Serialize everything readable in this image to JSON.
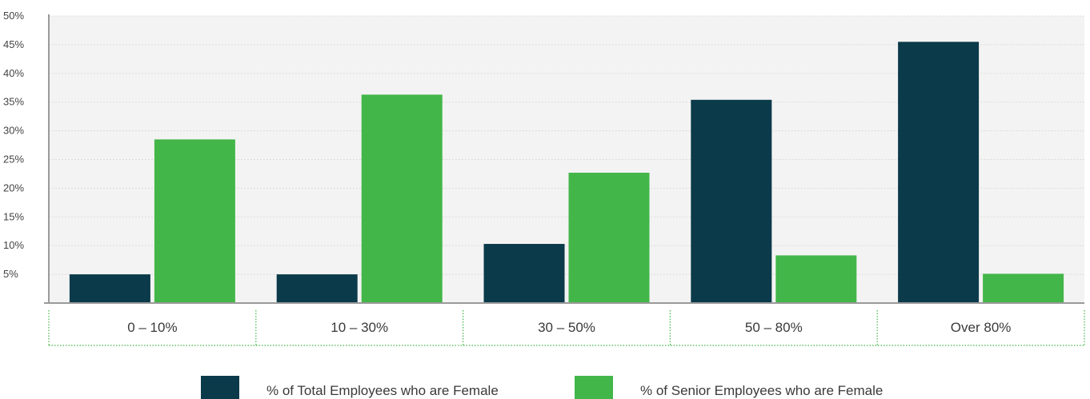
{
  "chart_data": {
    "type": "bar",
    "categories": [
      "0 – 10%",
      "10 – 30%",
      "30 – 50%",
      "50 – 80%",
      "Over 80%"
    ],
    "series": [
      {
        "name": "% of Total Employees who are Female",
        "color": "#0b3a4a",
        "values": [
          5,
          5,
          10.3,
          35.4,
          45.5
        ]
      },
      {
        "name": "% of Senior Employees who are Female",
        "color": "#43b649",
        "values": [
          28.5,
          36.3,
          22.7,
          8.3,
          5.1
        ]
      }
    ],
    "ylim": [
      0,
      50
    ],
    "yticks": [
      "5%",
      "10%",
      "15%",
      "20%",
      "25%",
      "30%",
      "35%",
      "40%",
      "45%",
      "50%"
    ],
    "ytick_values": [
      5,
      10,
      15,
      20,
      25,
      30,
      35,
      40,
      45,
      50
    ],
    "grid": true,
    "legend_position": "bottom",
    "title": "",
    "xlabel": "",
    "ylabel": ""
  }
}
